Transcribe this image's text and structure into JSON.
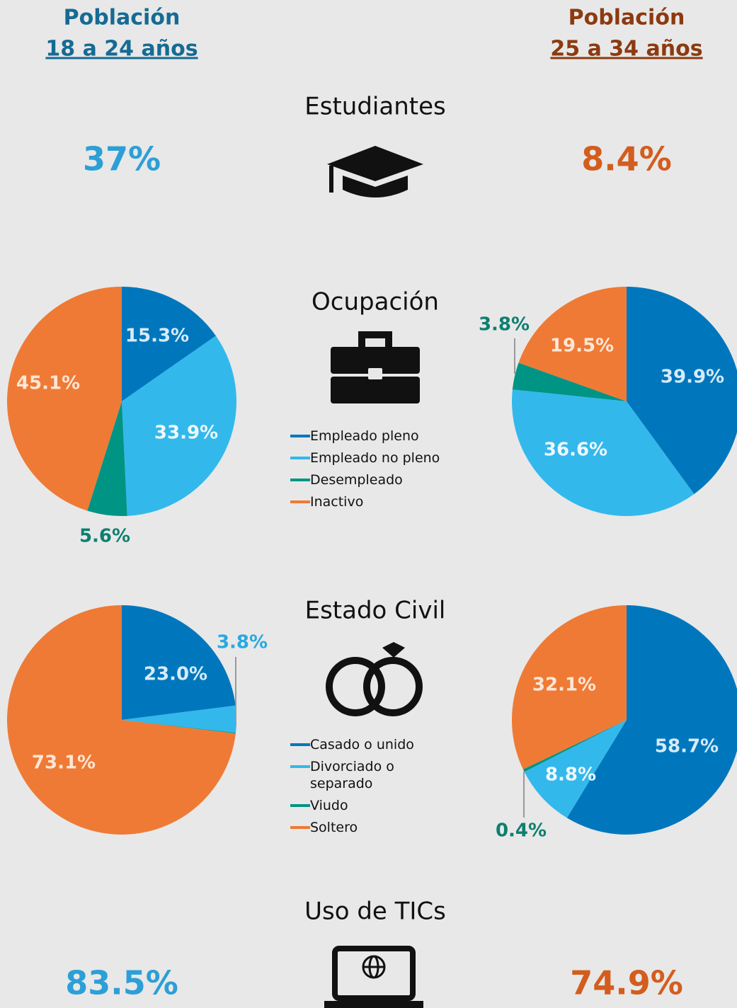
{
  "header": {
    "left": {
      "title": "Población",
      "subtitle": "18 a 24 años"
    },
    "right": {
      "title": "Población",
      "subtitle": "25 a 34 años"
    }
  },
  "students": {
    "title": "Estudiantes",
    "left": "37%",
    "right": "8.4%"
  },
  "occupation": {
    "title": "Ocupación"
  },
  "civil": {
    "title": "Estado Civil"
  },
  "tics": {
    "title": "Uso de TICs",
    "left": "83.5%",
    "right": "74.9%"
  },
  "chart_data": [
    {
      "type": "pie",
      "categories": [
        "Empleado pleno",
        "Empleado no pleno",
        "Desempleado",
        "Inactivo"
      ],
      "values": [
        15.3,
        33.9,
        5.6,
        45.1
      ],
      "value_labels": [
        "15.3%",
        "33.9%",
        "5.6%",
        "45.1%"
      ],
      "colors": [
        "#0077bd",
        "#33b8ec",
        "#009484",
        "#ef7a35"
      ]
    },
    {
      "type": "pie",
      "categories": [
        "Empleado pleno",
        "Empleado no pleno",
        "Desempleado",
        "Inactivo"
      ],
      "values": [
        39.9,
        36.6,
        3.8,
        19.5
      ],
      "value_labels": [
        "39.9%",
        "36.6%",
        "3.8%",
        "19.5%"
      ],
      "colors": [
        "#0077bd",
        "#33b8ec",
        "#009484",
        "#ef7a35"
      ]
    },
    {
      "type": "pie",
      "categories": [
        "Casado o unido",
        "Divorciado o separado",
        "Viudo",
        "Soltero"
      ],
      "values": [
        23.0,
        3.8,
        0.1,
        73.1
      ],
      "value_labels": [
        "23.0%",
        "3.8%",
        null,
        "73.1%"
      ],
      "colors": [
        "#0077bd",
        "#33b8ec",
        "#009484",
        "#ef7a35"
      ]
    },
    {
      "type": "pie",
      "categories": [
        "Casado o unido",
        "Divorciado o separado",
        "Viudo",
        "Soltero"
      ],
      "values": [
        58.7,
        8.8,
        0.4,
        32.1
      ],
      "value_labels": [
        "58.7%",
        "8.8%",
        "0.4%",
        "32.1%"
      ],
      "colors": [
        "#0077bd",
        "#33b8ec",
        "#009484",
        "#ef7a35"
      ]
    }
  ]
}
